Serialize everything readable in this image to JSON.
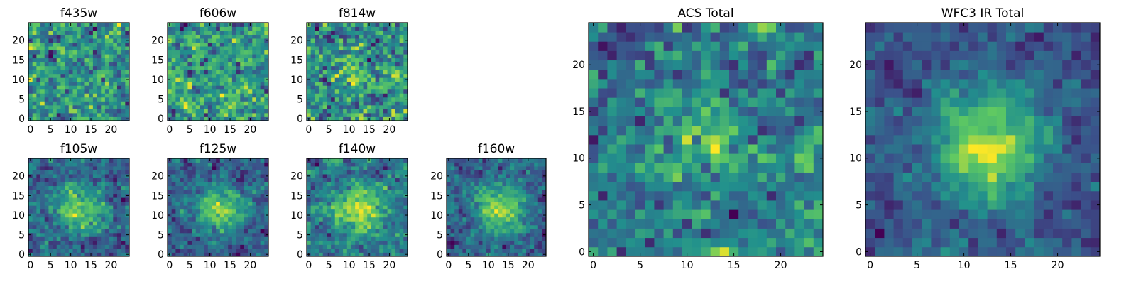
{
  "colormap": "viridis",
  "colors": [
    "#440154",
    "#3b528b",
    "#21908d",
    "#5dc863",
    "#fde725"
  ],
  "chart_data": [
    {
      "type": "heatmap",
      "title": "f435w",
      "size": 25,
      "seed": 11,
      "blob": 0.0,
      "noise": 1.0,
      "xticks": [
        0,
        5,
        10,
        15,
        20
      ],
      "yticks": [
        0,
        5,
        10,
        15,
        20
      ],
      "xlim": [
        -0.5,
        24.5
      ],
      "ylim": [
        -0.5,
        24.5
      ]
    },
    {
      "type": "heatmap",
      "title": "f606w",
      "size": 25,
      "seed": 23,
      "blob": 0.0,
      "noise": 1.0,
      "xticks": [
        0,
        5,
        10,
        15,
        20
      ],
      "yticks": [
        0,
        5,
        10,
        15,
        20
      ],
      "xlim": [
        -0.5,
        24.5
      ],
      "ylim": [
        -0.5,
        24.5
      ]
    },
    {
      "type": "heatmap",
      "title": "f814w",
      "size": 25,
      "seed": 37,
      "blob": 0.2,
      "noise": 1.0,
      "xticks": [
        0,
        5,
        10,
        15,
        20
      ],
      "yticks": [
        0,
        5,
        10,
        15,
        20
      ],
      "xlim": [
        -0.5,
        24.5
      ],
      "ylim": [
        -0.5,
        24.5
      ]
    },
    {
      "type": "heatmap",
      "title": "f105w",
      "size": 25,
      "seed": 41,
      "blob": 1.0,
      "noise": 0.65,
      "xticks": [
        0,
        5,
        10,
        15,
        20
      ],
      "yticks": [
        0,
        5,
        10,
        15,
        20
      ],
      "xlim": [
        -0.5,
        24.5
      ],
      "ylim": [
        -0.5,
        24.5
      ]
    },
    {
      "type": "heatmap",
      "title": "f125w",
      "size": 25,
      "seed": 53,
      "blob": 1.1,
      "noise": 0.65,
      "xticks": [
        0,
        5,
        10,
        15,
        20
      ],
      "yticks": [
        0,
        5,
        10,
        15,
        20
      ],
      "xlim": [
        -0.5,
        24.5
      ],
      "ylim": [
        -0.5,
        24.5
      ]
    },
    {
      "type": "heatmap",
      "title": "f140w",
      "size": 25,
      "seed": 67,
      "blob": 1.0,
      "noise": 0.65,
      "xticks": [
        0,
        5,
        10,
        15,
        20
      ],
      "yticks": [
        0,
        5,
        10,
        15,
        20
      ],
      "xlim": [
        -0.5,
        24.5
      ],
      "ylim": [
        -0.5,
        24.5
      ]
    },
    {
      "type": "heatmap",
      "title": "f160w",
      "size": 25,
      "seed": 79,
      "blob": 1.2,
      "noise": 0.6,
      "xticks": [
        0,
        5,
        10,
        15,
        20
      ],
      "yticks": [
        0,
        5,
        10,
        15,
        20
      ],
      "xlim": [
        -0.5,
        24.5
      ],
      "ylim": [
        -0.5,
        24.5
      ]
    },
    {
      "type": "heatmap",
      "title": "ACS Total",
      "size": 25,
      "seed": 97,
      "blob": 0.5,
      "noise": 0.9,
      "xticks": [
        0,
        5,
        10,
        15,
        20
      ],
      "yticks": [
        0,
        5,
        10,
        15,
        20
      ],
      "xlim": [
        -0.5,
        24.5
      ],
      "ylim": [
        -0.5,
        24.5
      ]
    },
    {
      "type": "heatmap",
      "title": "WFC3 IR Total",
      "size": 25,
      "seed": 113,
      "blob": 1.6,
      "noise": 0.55,
      "xticks": [
        0,
        5,
        10,
        15,
        20
      ],
      "yticks": [
        0,
        5,
        10,
        15,
        20
      ],
      "xlim": [
        -0.5,
        24.5
      ],
      "ylim": [
        -0.5,
        24.5
      ]
    }
  ]
}
